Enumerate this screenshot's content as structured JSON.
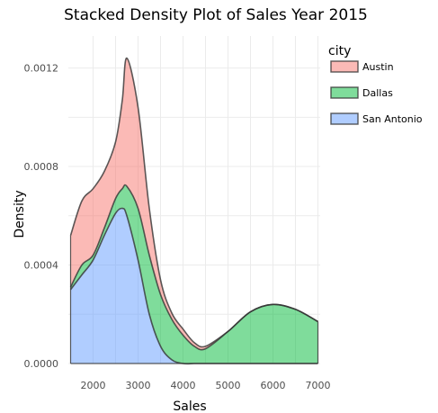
{
  "chart_data": {
    "type": "area",
    "stacked": true,
    "title": "Stacked Density Plot of Sales Year 2015",
    "xlabel": "Sales",
    "ylabel": "Density",
    "xlim": [
      1450,
      7050
    ],
    "ylim": [
      0,
      0.00133
    ],
    "x_ticks": [
      2000,
      3000,
      4000,
      5000,
      6000,
      7000
    ],
    "y_ticks": [
      0.0,
      0.0004,
      0.0008,
      0.0012
    ],
    "y_tick_labels": [
      "0.0000",
      "0.0004",
      "0.0008",
      "0.0012"
    ],
    "grid": true,
    "legend_title": "city",
    "legend_position": "right",
    "x": [
      1500,
      1750,
      2000,
      2250,
      2500,
      2650,
      2750,
      3000,
      3250,
      3500,
      3750,
      4000,
      4250,
      4500,
      5000,
      5500,
      6000,
      6500,
      7000
    ],
    "series": [
      {
        "name": "San Antonio",
        "color": "#619CFF",
        "values": [
          0.0003,
          0.00036,
          0.00042,
          0.00052,
          0.00061,
          0.00063,
          0.0006,
          0.00042,
          0.0002,
          7e-05,
          1.5e-05,
          0.0,
          0.0,
          0.0,
          0.0,
          0.0,
          0.0,
          0.0,
          0.0
        ]
      },
      {
        "name": "Dallas",
        "color": "#00BA38",
        "values": [
          1e-05,
          4e-05,
          2e-05,
          3e-05,
          6e-05,
          8e-05,
          0.00012,
          0.00021,
          0.00024,
          0.00021,
          0.000165,
          0.000115,
          7e-05,
          6e-05,
          0.00013,
          0.00021,
          0.00024,
          0.00022,
          0.00017
        ]
      },
      {
        "name": "Austin",
        "color": "#F8766D",
        "values": [
          0.00021,
          0.00026,
          0.00027,
          0.00023,
          0.00023,
          0.00036,
          0.00052,
          0.00041,
          0.00019,
          6e-05,
          2.5e-05,
          2.5e-05,
          1.5e-05,
          1e-05,
          0.0,
          0.0,
          0.0,
          0.0,
          0.0
        ]
      }
    ]
  }
}
